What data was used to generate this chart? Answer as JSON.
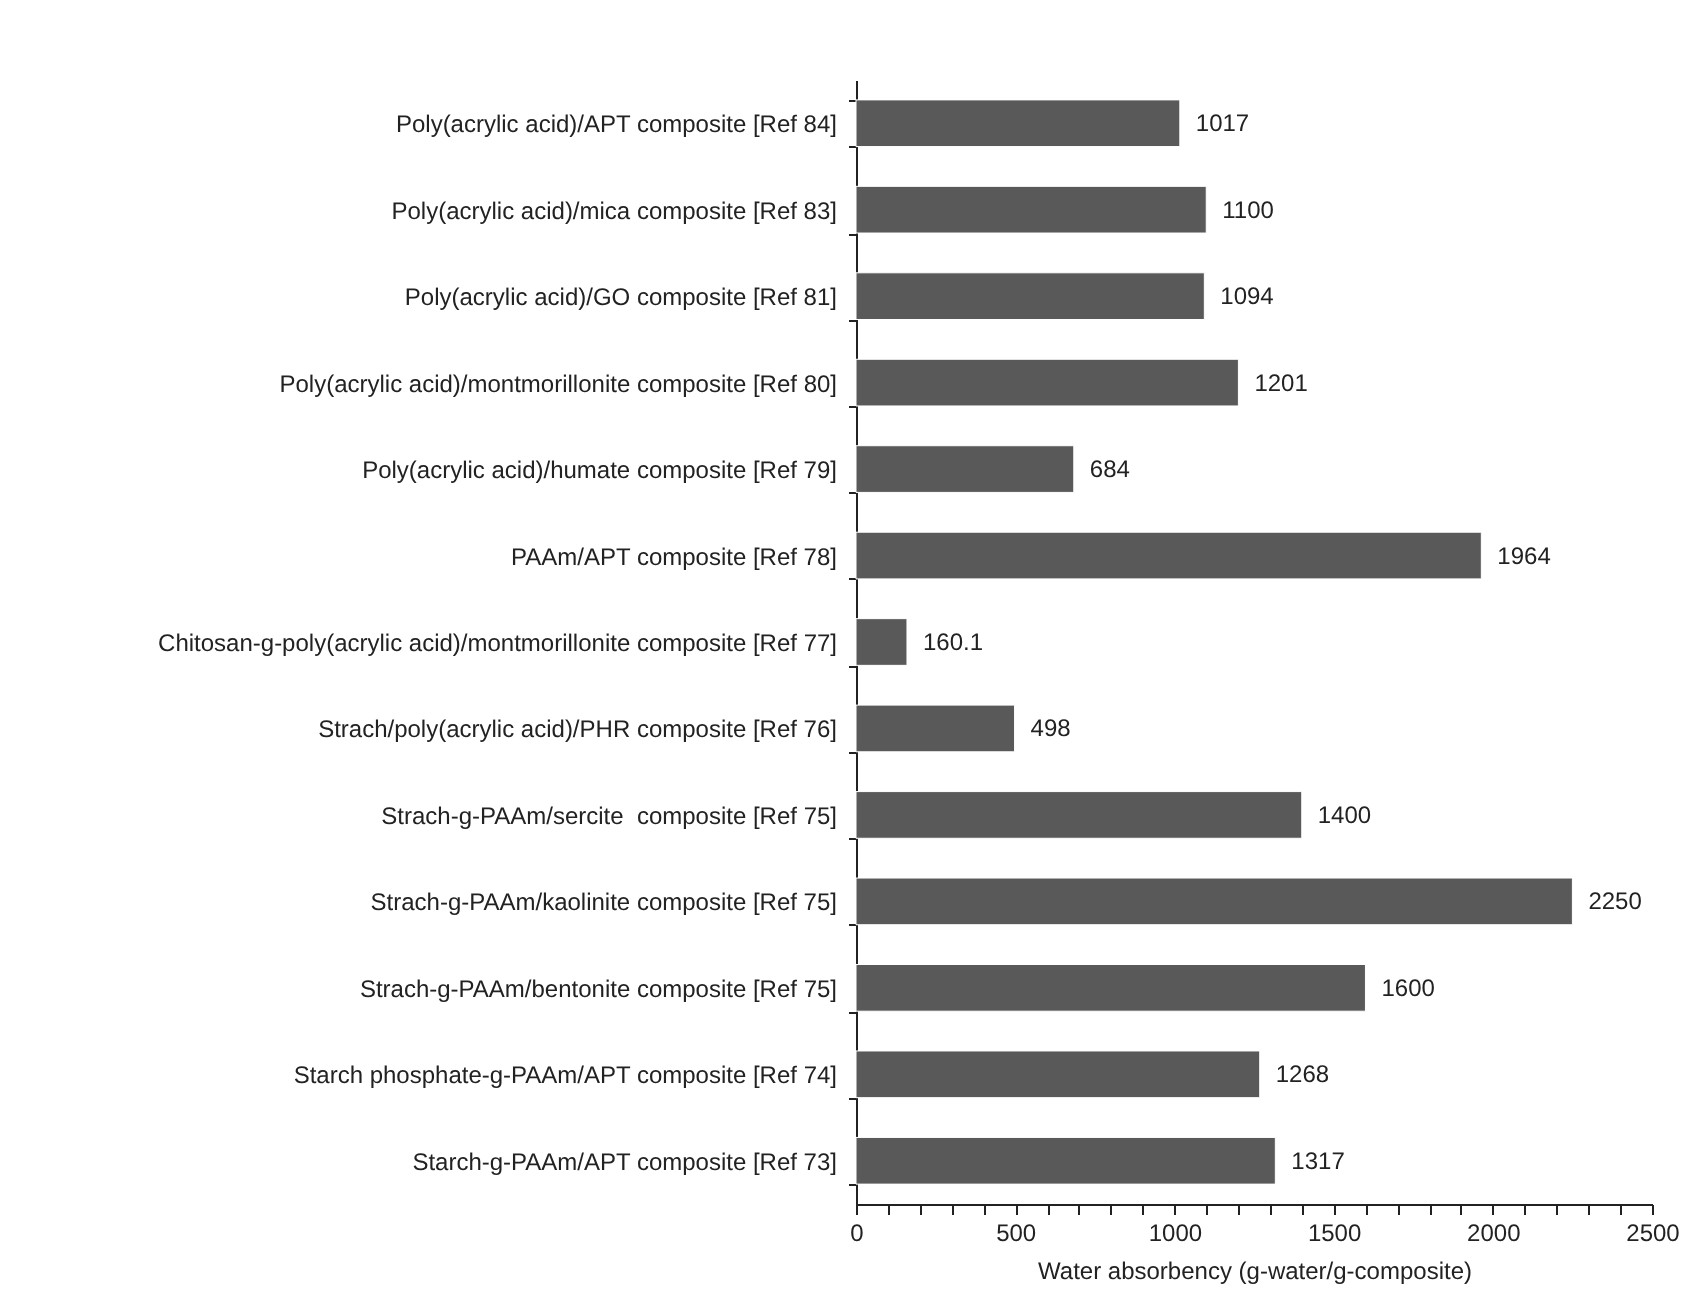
{
  "chart_data": {
    "type": "bar",
    "orientation": "horizontal",
    "xlabel": "Water absorbency (g-water/g-composite)",
    "categories": [
      "Poly(acrylic acid)/APT composite [Ref 84]",
      "Poly(acrylic acid)/mica composite [Ref 83]",
      "Poly(acrylic acid)/GO composite [Ref 81]",
      "Poly(acrylic acid)/montmorillonite composite [Ref 80]",
      "Poly(acrylic acid)/humate composite [Ref 79]",
      "PAAm/APT composite [Ref 78]",
      "Chitosan-g-poly(acrylic acid)/montmorillonite composite [Ref 77]",
      "Strach/poly(acrylic acid)/PHR composite [Ref 76]",
      "Strach-g-PAAm/sercite  composite [Ref 75]",
      "Strach-g-PAAm/kaolinite composite [Ref 75]",
      "Strach-g-PAAm/bentonite composite [Ref 75]",
      "Starch phosphate-g-PAAm/APT composite [Ref 74]",
      "Starch-g-PAAm/APT composite [Ref 73]"
    ],
    "values": [
      1017,
      1100,
      1094,
      1201,
      684,
      1964,
      160.1,
      498,
      1400,
      2250,
      1600,
      1268,
      1317
    ],
    "color": "#595959",
    "data_labels": true,
    "grid": false,
    "xlim": [
      0,
      2500
    ],
    "xticks": [
      0,
      {
        "value": 100,
        "label": null
      },
      {
        "value": 200,
        "label": null
      },
      {
        "value": 300,
        "label": null
      },
      {
        "value": 400,
        "label": null
      },
      500,
      {
        "value": 600,
        "label": null
      },
      {
        "value": 700,
        "label": null
      },
      {
        "value": 800,
        "label": null
      },
      {
        "value": 900,
        "label": null
      },
      1000,
      {
        "value": 1100,
        "label": null
      },
      {
        "value": 1200,
        "label": null
      },
      {
        "value": 1300,
        "label": null
      },
      {
        "value": 1400,
        "label": null
      },
      1500,
      {
        "value": 1600,
        "label": null
      },
      {
        "value": 1700,
        "label": null
      },
      {
        "value": 1800,
        "label": null
      },
      {
        "value": 1900,
        "label": null
      },
      2000,
      {
        "value": 2100,
        "label": null
      },
      {
        "value": 2200,
        "label": null
      },
      {
        "value": 2300,
        "label": null
      },
      {
        "value": 2400,
        "label": null
      },
      2500
    ]
  }
}
